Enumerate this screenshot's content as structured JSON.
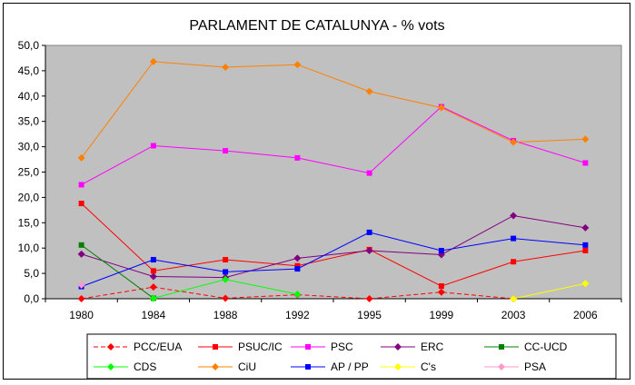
{
  "chart_data": {
    "type": "line",
    "title": "PARLAMENT DE CATALUNYA - % vots",
    "xlabel": "",
    "ylabel": "",
    "categories": [
      "1980",
      "1984",
      "1988",
      "1992",
      "1995",
      "1999",
      "2003",
      "2006"
    ],
    "ylim": [
      0,
      50
    ],
    "ytick_labels": [
      "0,0",
      "5,0",
      "10,0",
      "15,0",
      "20,0",
      "25,0",
      "30,0",
      "35,0",
      "40,0",
      "45,0",
      "50,0"
    ],
    "grid": false,
    "plot_background": "#c0c0c0",
    "legend_position": "bottom",
    "series": [
      {
        "name": "PCC/EUA",
        "color": "#ff0000",
        "marker": "diamond",
        "dashed": true,
        "values": [
          0.0,
          2.3,
          0.1,
          0.8,
          0.0,
          1.3,
          0.0,
          null
        ]
      },
      {
        "name": "PSUC/IC",
        "color": "#ff0000",
        "marker": "square",
        "dashed": false,
        "values": [
          18.8,
          5.5,
          7.7,
          6.5,
          9.7,
          2.5,
          7.3,
          9.5
        ]
      },
      {
        "name": "PSC",
        "color": "#ff00ff",
        "marker": "square",
        "dashed": false,
        "values": [
          22.5,
          30.2,
          29.2,
          27.8,
          24.8,
          37.9,
          31.2,
          26.8
        ]
      },
      {
        "name": "ERC",
        "color": "#800080",
        "marker": "diamond",
        "dashed": false,
        "values": [
          8.8,
          4.4,
          4.2,
          8.0,
          9.5,
          8.7,
          16.4,
          14.0
        ]
      },
      {
        "name": "CC-UCD",
        "color": "#008000",
        "marker": "square",
        "dashed": false,
        "values": [
          10.6,
          0.1,
          null,
          null,
          null,
          null,
          null,
          null
        ]
      },
      {
        "name": "CDS",
        "color": "#00ff00",
        "marker": "diamond",
        "dashed": false,
        "values": [
          null,
          0.1,
          3.8,
          0.9,
          null,
          null,
          null,
          null
        ]
      },
      {
        "name": "CiU",
        "color": "#ff8000",
        "marker": "diamond",
        "dashed": false,
        "values": [
          27.8,
          46.8,
          45.7,
          46.2,
          40.9,
          37.7,
          30.9,
          31.5
        ]
      },
      {
        "name": "AP / PP",
        "color": "#0000ff",
        "marker": "square",
        "dashed": false,
        "values": [
          2.4,
          7.7,
          5.3,
          5.9,
          13.1,
          9.5,
          11.9,
          10.6
        ]
      },
      {
        "name": "C's",
        "color": "#ffff00",
        "marker": "diamond",
        "dashed": false,
        "values": [
          null,
          null,
          null,
          null,
          null,
          null,
          0.0,
          3.0
        ]
      },
      {
        "name": "PSA",
        "color": "#ff99cc",
        "marker": "diamond",
        "dashed": false,
        "values": [
          2.7,
          null,
          null,
          null,
          null,
          null,
          null,
          null
        ]
      }
    ]
  }
}
